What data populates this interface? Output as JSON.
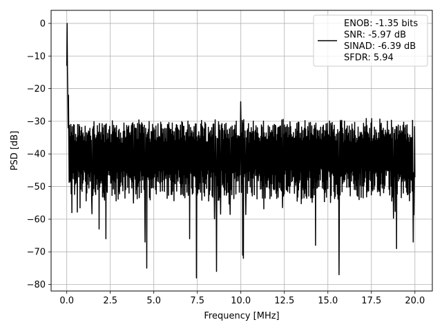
{
  "chart_data": {
    "type": "line",
    "xlabel": "Frequency [MHz]",
    "ylabel": "PSD [dB]",
    "xlim": [
      -0.9,
      21.0
    ],
    "ylim": [
      -82,
      4
    ],
    "xticks": [
      0.0,
      2.5,
      5.0,
      7.5,
      10.0,
      12.5,
      15.0,
      17.5,
      20.0
    ],
    "xtick_labels": [
      "0.0",
      "2.5",
      "5.0",
      "7.5",
      "10.0",
      "12.5",
      "15.0",
      "17.5",
      "20.0"
    ],
    "yticks": [
      0,
      -10,
      -20,
      -30,
      -40,
      -50,
      -60,
      -70,
      -80
    ],
    "ytick_labels": [
      "0",
      "−10",
      "−20",
      "−30",
      "−40",
      "−50",
      "−60",
      "−70",
      "−80"
    ],
    "grid": true,
    "legend_position": "top-right",
    "line_color": "#000000",
    "series": [
      {
        "legend_lines": [
          "ENOB: -1.35 bits",
          "SNR: -5.97 dB",
          "SINAD: -6.39 dB",
          "SFDR: 5.94"
        ],
        "x_range": [
          0.0,
          20.0
        ],
        "n_points": 1024,
        "noise_floor_mean_db": -40,
        "upper_envelope_db": -29,
        "lower_envelope_db": -55,
        "peaks": [
          {
            "x": 0.0,
            "y": 0
          },
          {
            "x": 0.04,
            "y": -13
          },
          {
            "x": 0.1,
            "y": -22
          },
          {
            "x": 10.0,
            "y": -24
          }
        ],
        "notable_minima": [
          {
            "x": 0.3,
            "y": -58
          },
          {
            "x": 1.85,
            "y": -63
          },
          {
            "x": 2.25,
            "y": -66
          },
          {
            "x": 4.5,
            "y": -67
          },
          {
            "x": 4.6,
            "y": -75
          },
          {
            "x": 7.05,
            "y": -66
          },
          {
            "x": 7.45,
            "y": -78
          },
          {
            "x": 8.6,
            "y": -76
          },
          {
            "x": 10.1,
            "y": -71
          },
          {
            "x": 10.15,
            "y": -72
          },
          {
            "x": 14.3,
            "y": -68
          },
          {
            "x": 15.65,
            "y": -77
          },
          {
            "x": 18.95,
            "y": -69
          },
          {
            "x": 19.9,
            "y": -67
          }
        ]
      }
    ]
  }
}
